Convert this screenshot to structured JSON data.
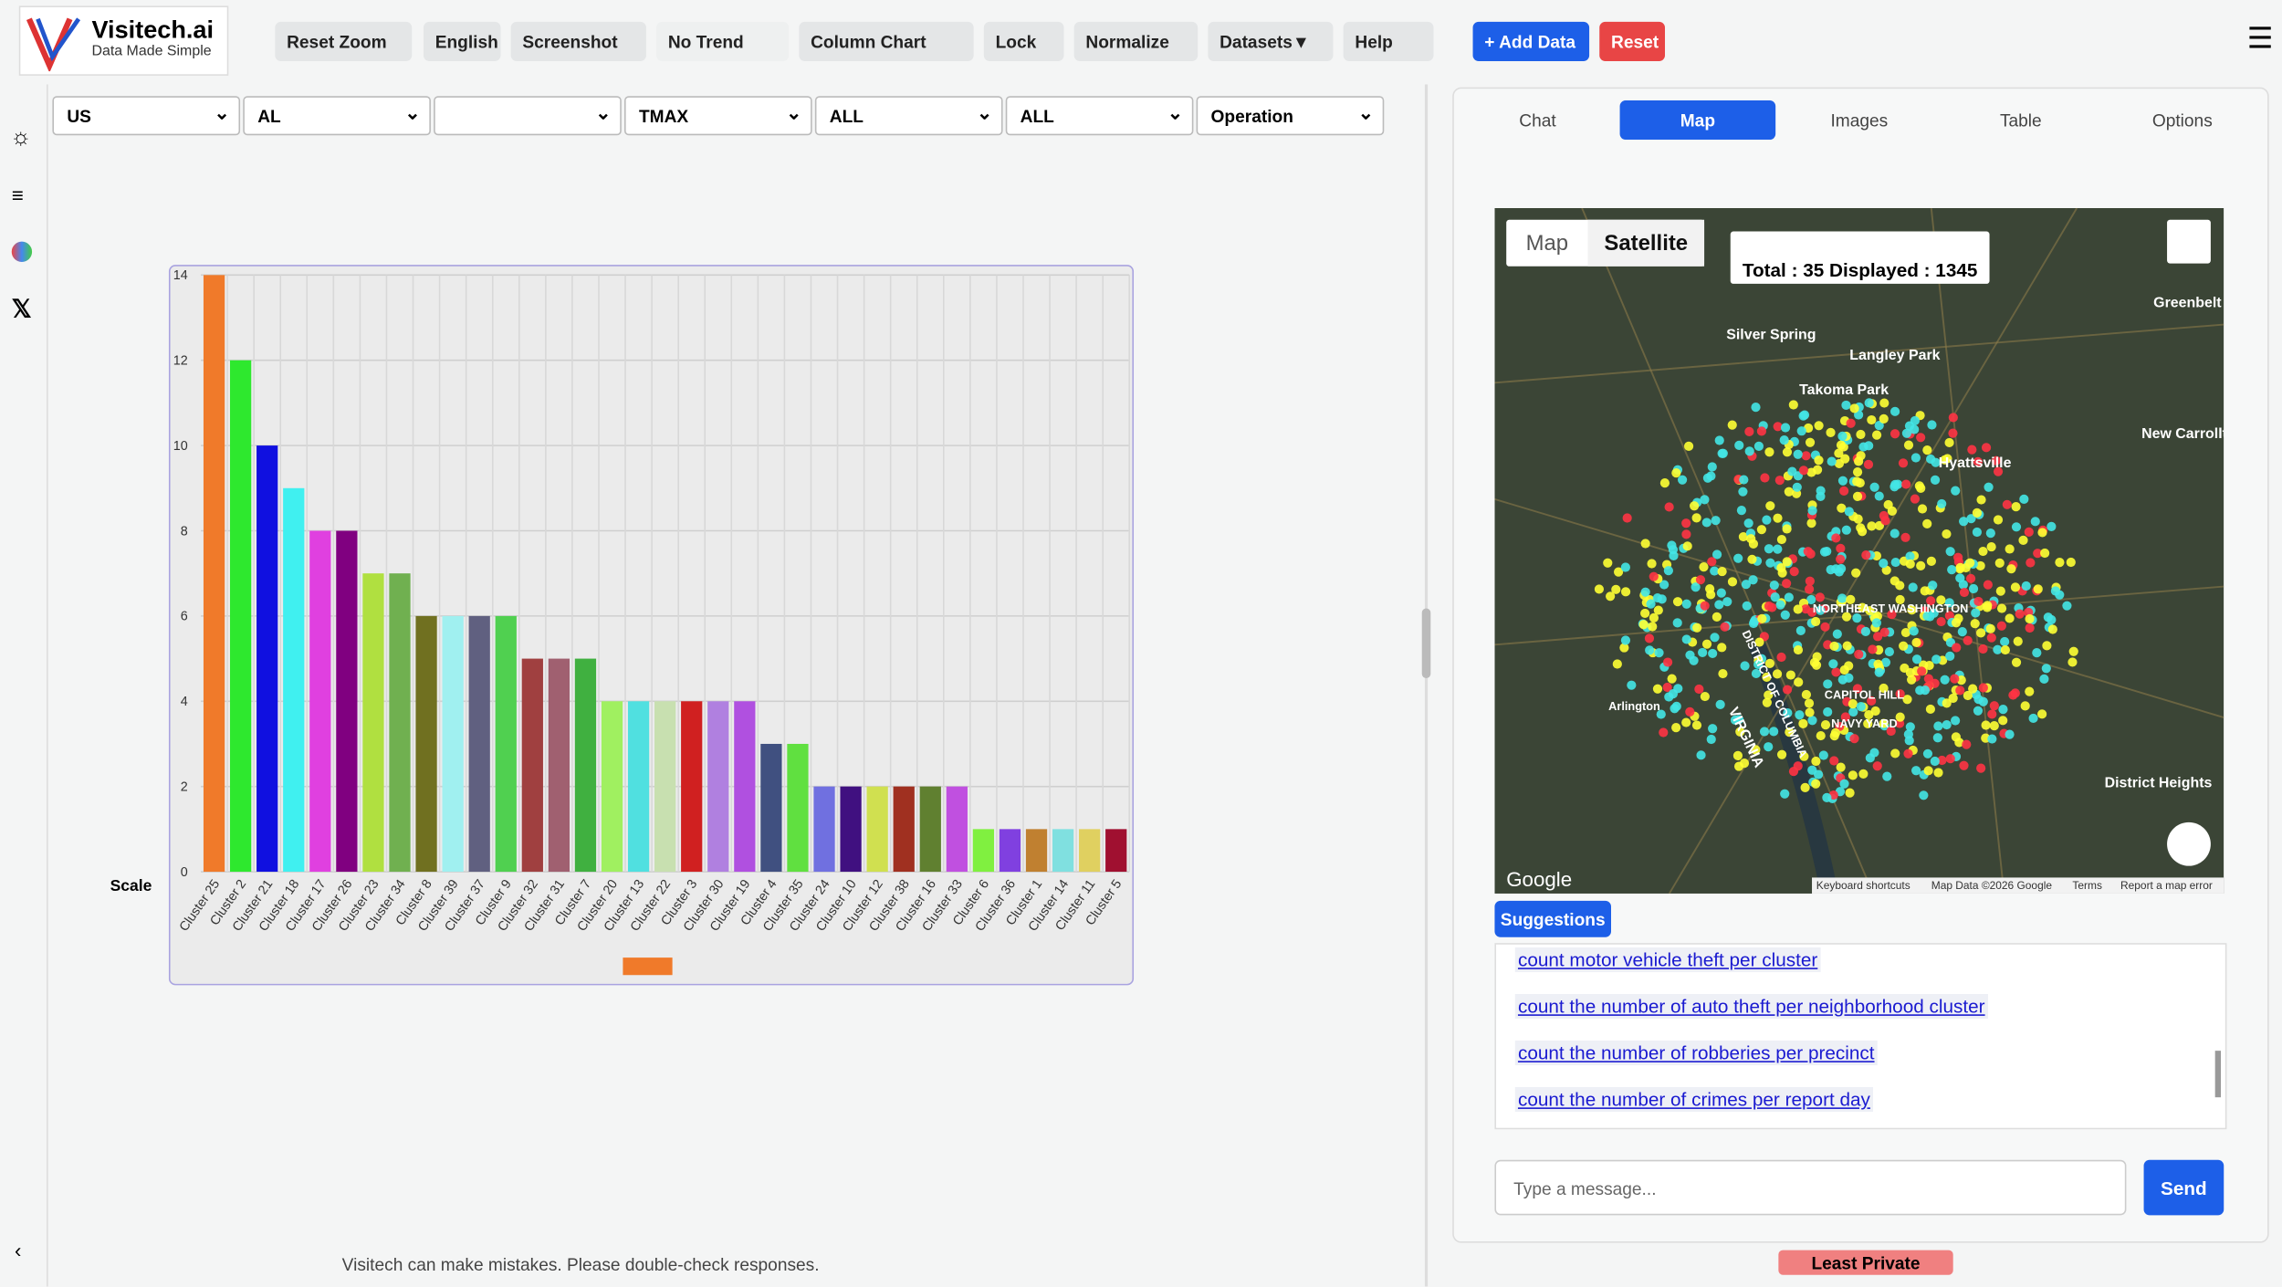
{
  "header": {
    "logo_title": "Visitech.ai",
    "logo_subtitle": "Data Made Simple",
    "toolbar": [
      "Reset Zoom",
      "English",
      "Screenshot",
      "No Trend",
      "Column Chart",
      "Lock",
      "Normalize",
      "Datasets▼",
      "Help"
    ],
    "add_data": "+ Add Data",
    "reset": "Reset"
  },
  "filters": [
    "US",
    "AL",
    null,
    "TMAX",
    "ALL",
    "ALL",
    "Operation"
  ],
  "chart": {
    "type": "bar",
    "scale_label": "Scale",
    "categories": [
      "Cluster 25",
      "Cluster 2",
      "Cluster 21",
      "Cluster 18",
      "Cluster 17",
      "Cluster 26",
      "Cluster 23",
      "Cluster 34",
      "Cluster 8",
      "Cluster 39",
      "Cluster 37",
      "Cluster 9",
      "Cluster 32",
      "Cluster 31",
      "Cluster 7",
      "Cluster 20",
      "Cluster 13",
      "Cluster 22",
      "Cluster 3",
      "Cluster 30",
      "Cluster 19",
      "Cluster 4",
      "Cluster 35",
      "Cluster 24",
      "Cluster 10",
      "Cluster 12",
      "Cluster 38",
      "Cluster 16",
      "Cluster 33",
      "Cluster 6",
      "Cluster 36",
      "Cluster 1",
      "Cluster 14",
      "Cluster 11",
      "Cluster 5"
    ],
    "values": [
      14,
      12,
      10,
      9,
      8,
      8,
      7,
      7,
      6,
      6,
      6,
      6,
      5,
      5,
      5,
      4,
      4,
      4,
      4,
      4,
      4,
      3,
      3,
      2,
      2,
      2,
      2,
      2,
      2,
      1,
      1,
      1,
      1,
      1,
      1
    ],
    "colors": [
      "#f07a2a",
      "#2ee82e",
      "#1010e0",
      "#40f0f0",
      "#e040e0",
      "#800080",
      "#b0e040",
      "#70b050",
      "#707020",
      "#a0f0f0",
      "#606080",
      "#50d050",
      "#a04040",
      "#a06070",
      "#40b040",
      "#a0f060",
      "#50e0e0",
      "#c8e0b0",
      "#d02020",
      "#b080e0",
      "#b050e0",
      "#405080",
      "#60e040",
      "#7070e0",
      "#401080",
      "#d0e050",
      "#a03020",
      "#608030",
      "#c050e0",
      "#80f040",
      "#8040e0",
      "#c08030",
      "#80e0e0",
      "#e0d060",
      "#a01030"
    ],
    "ylim": [
      0,
      14
    ],
    "yticks": [
      0,
      2,
      4,
      6,
      8,
      10,
      12,
      14
    ],
    "grid": true
  },
  "tabs": [
    "Chat",
    "Map",
    "Images",
    "Table",
    "Options"
  ],
  "map": {
    "toggle": [
      "Map",
      "Satellite"
    ],
    "status": "Total : 35 Displayed : 1345",
    "places": [
      "Silver Spring",
      "Takoma Park",
      "Langley Park",
      "Hyattsville",
      "New Carrollton",
      "NORTHEAST WASHINGTON",
      "Arlington",
      "CAPITOL HILL",
      "NAVY YARD",
      "DISTRICT OF COLUMBIA",
      "VIRGINIA",
      "District Heights",
      "Greenbelt"
    ],
    "google": "Google",
    "attribution": [
      "Keyboard shortcuts",
      "Map Data ©2026 Google",
      "Terms",
      "Report a map error"
    ]
  },
  "suggestions_label": "Suggestions",
  "suggestions": [
    "count motor vehicle theft per cluster",
    "count the number of auto theft per neighborhood cluster",
    "count the number of robberies per precinct",
    "count the number of crimes per report day"
  ],
  "input_placeholder": "Type a message...",
  "send": "Send",
  "disclaimer": "Visitech can make mistakes. Please double-check responses.",
  "privacy": "Least Private"
}
